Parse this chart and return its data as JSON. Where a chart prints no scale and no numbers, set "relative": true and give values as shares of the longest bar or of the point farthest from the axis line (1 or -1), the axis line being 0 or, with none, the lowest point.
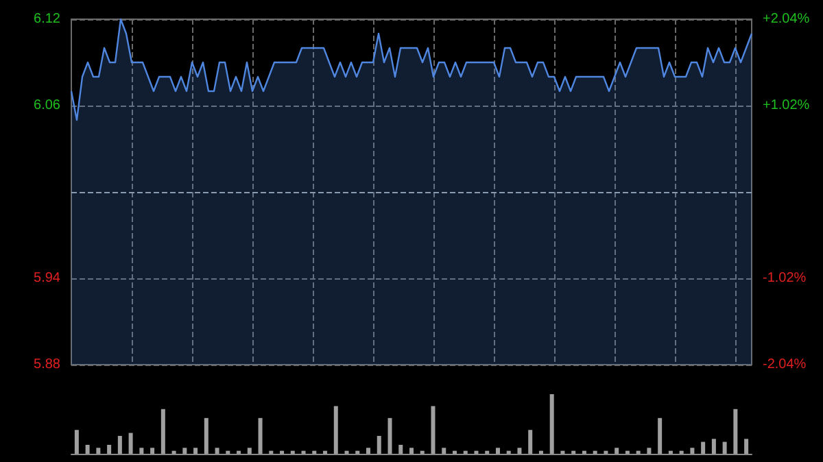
{
  "chart_data": [
    {
      "type": "area",
      "categories": [
        null,
        null,
        null,
        null,
        null,
        null,
        null,
        null,
        null,
        null,
        null,
        null,
        null,
        null,
        null,
        null,
        null,
        null,
        null,
        null,
        null,
        null,
        null,
        null,
        null,
        null,
        null,
        null,
        null,
        null,
        null,
        null,
        null,
        null,
        null,
        null,
        null,
        null,
        null,
        null,
        null,
        null,
        null,
        null,
        null,
        null,
        null,
        null,
        null,
        null,
        null,
        null,
        null,
        null,
        null,
        null,
        null,
        null,
        null,
        null,
        null,
        null,
        null,
        null,
        null,
        null,
        null,
        null,
        null,
        null,
        null,
        null,
        null,
        null,
        null,
        null,
        null,
        null,
        null,
        null,
        null,
        null,
        null,
        null,
        null,
        null,
        null,
        null,
        null,
        null,
        null,
        null,
        null,
        null,
        null,
        null,
        null,
        null,
        null,
        null,
        null,
        null,
        null,
        null,
        null,
        null,
        null,
        null,
        null,
        null,
        null,
        null,
        null,
        null,
        null,
        null,
        null,
        null,
        null,
        null,
        null,
        null,
        null,
        null,
        null
      ],
      "series": [
        {
          "color": "#4f86e0",
          "values": [
            6.07,
            6.05,
            6.08,
            6.09,
            6.08,
            6.08,
            6.1,
            6.09,
            6.09,
            6.12,
            6.11,
            6.09,
            6.09,
            6.09,
            6.08,
            6.07,
            6.08,
            6.08,
            6.08,
            6.07,
            6.08,
            6.07,
            6.09,
            6.08,
            6.09,
            6.07,
            6.07,
            6.09,
            6.09,
            6.07,
            6.08,
            6.07,
            6.09,
            6.07,
            6.08,
            6.07,
            6.08,
            6.09,
            6.09,
            6.09,
            6.09,
            6.09,
            6.1,
            6.1,
            6.1,
            6.1,
            6.1,
            6.09,
            6.08,
            6.09,
            6.08,
            6.09,
            6.08,
            6.09,
            6.09,
            6.09,
            6.11,
            6.09,
            6.1,
            6.08,
            6.1,
            6.1,
            6.1,
            6.1,
            6.09,
            6.1,
            6.08,
            6.09,
            6.09,
            6.08,
            6.09,
            6.08,
            6.09,
            6.09,
            6.09,
            6.09,
            6.09,
            6.09,
            6.08,
            6.1,
            6.1,
            6.09,
            6.09,
            6.09,
            6.08,
            6.09,
            6.09,
            6.08,
            6.08,
            6.07,
            6.08,
            6.07,
            6.08,
            6.08,
            6.08,
            6.08,
            6.08,
            6.08,
            6.07,
            6.08,
            6.09,
            6.08,
            6.09,
            6.1,
            6.1,
            6.1,
            6.1,
            6.1,
            6.08,
            6.09,
            6.08,
            6.08,
            6.08,
            6.09,
            6.09,
            6.08,
            6.1,
            6.09,
            6.1,
            6.09,
            6.09,
            6.1,
            6.09,
            6.1,
            6.11
          ]
        }
      ],
      "ylim": [
        5.88,
        6.12
      ],
      "yticks": [
        5.88,
        5.94,
        6.06,
        6.12
      ],
      "ref_lines": [
        {
          "axis": "y",
          "value": 6.0,
          "color": "#8a9ab0",
          "line_style": "dashed"
        }
      ],
      "y2lim": [
        -2.04,
        2.04
      ],
      "y2ticks": [
        {
          "value": -2.04,
          "label": "-2.04%"
        },
        {
          "value": -1.02,
          "label": "-1.02%"
        },
        {
          "value": 1.02,
          "label": "+1.02%"
        },
        {
          "value": 2.04,
          "label": "+2.04%"
        }
      ],
      "grid": true
    },
    {
      "type": "bar",
      "relative": true,
      "categories": [
        null,
        null,
        null,
        null,
        null,
        null,
        null,
        null,
        null,
        null,
        null,
        null,
        null,
        null,
        null,
        null,
        null,
        null,
        null,
        null,
        null,
        null,
        null,
        null,
        null,
        null,
        null,
        null,
        null,
        null,
        null,
        null,
        null,
        null,
        null,
        null,
        null,
        null,
        null,
        null,
        null,
        null,
        null,
        null,
        null,
        null,
        null,
        null,
        null,
        null,
        null,
        null,
        null,
        null,
        null,
        null,
        null,
        null,
        null,
        null,
        null,
        null,
        null
      ],
      "series": [
        {
          "color": "#a0a0a0",
          "values": [
            0.4,
            0.15,
            0.1,
            0.15,
            0.3,
            0.35,
            0.1,
            0.1,
            0.75,
            0.05,
            0.1,
            0.1,
            0.6,
            0.1,
            0.05,
            0.05,
            0.1,
            0.6,
            0.05,
            0.05,
            0.05,
            0.05,
            0.05,
            0.05,
            0.8,
            0.05,
            0.05,
            0.1,
            0.3,
            0.6,
            0.15,
            0.1,
            0.05,
            0.8,
            0.1,
            0.05,
            0.05,
            0.05,
            0.05,
            0.1,
            0.05,
            0.1,
            0.4,
            0.05,
            1,
            0.05,
            0.05,
            0.05,
            0.05,
            0.05,
            0.1,
            0.05,
            0.05,
            0.1,
            0.6,
            0.05,
            0.05,
            0.1,
            0.2,
            0.25,
            0.2,
            0.75,
            0.25
          ]
        }
      ],
      "grid": false
    }
  ]
}
